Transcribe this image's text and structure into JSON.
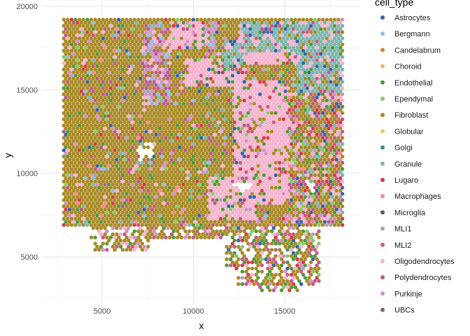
{
  "chart_data": {
    "type": "scatter",
    "title": "",
    "xlabel": "x",
    "ylabel": "y",
    "xlim": [
      2300,
      18700
    ],
    "ylim": [
      2300,
      20000
    ],
    "x_ticks": [
      5000,
      10000,
      15000
    ],
    "x_tick_labels": [
      "5000",
      "10000",
      "15000"
    ],
    "y_ticks": [
      5000,
      10000,
      15000,
      20000
    ],
    "y_tick_labels": [
      "5000",
      "10000",
      "15000",
      "20000"
    ],
    "grid": true,
    "legend_title": "cell_type",
    "legend_position": "right",
    "series": [
      {
        "name": "Astrocytes",
        "color": "#3A62A8"
      },
      {
        "name": "Bergmann",
        "color": "#8FBDE3"
      },
      {
        "name": "Candelabrum",
        "color": "#E57A27"
      },
      {
        "name": "Choroid",
        "color": "#F5B266"
      },
      {
        "name": "Endothelial",
        "color": "#4F9A3B"
      },
      {
        "name": "Ependymal",
        "color": "#82CC6A"
      },
      {
        "name": "Fibroblast",
        "color": "#A88A26"
      },
      {
        "name": "Globular",
        "color": "#F2C555"
      },
      {
        "name": "Golgi",
        "color": "#3E8A86"
      },
      {
        "name": "Granule",
        "color": "#7DB5AE"
      },
      {
        "name": "Lugaro",
        "color": "#DA3A45"
      },
      {
        "name": "Macrophages",
        "color": "#F58A8A"
      },
      {
        "name": "Microglia",
        "color": "#5A5A5A"
      },
      {
        "name": "MLI1",
        "color": "#A7A7A7"
      },
      {
        "name": "MLI2",
        "color": "#C55A85"
      },
      {
        "name": "Oligodendrocytes",
        "color": "#F5B2CE"
      },
      {
        "name": "Polydendrocytes",
        "color": "#B35B8F"
      },
      {
        "name": "Purkinje",
        "color": "#CF91C4"
      },
      {
        "name": "UBCs",
        "color": "#8C6450"
      }
    ],
    "points_note_free": true
  }
}
